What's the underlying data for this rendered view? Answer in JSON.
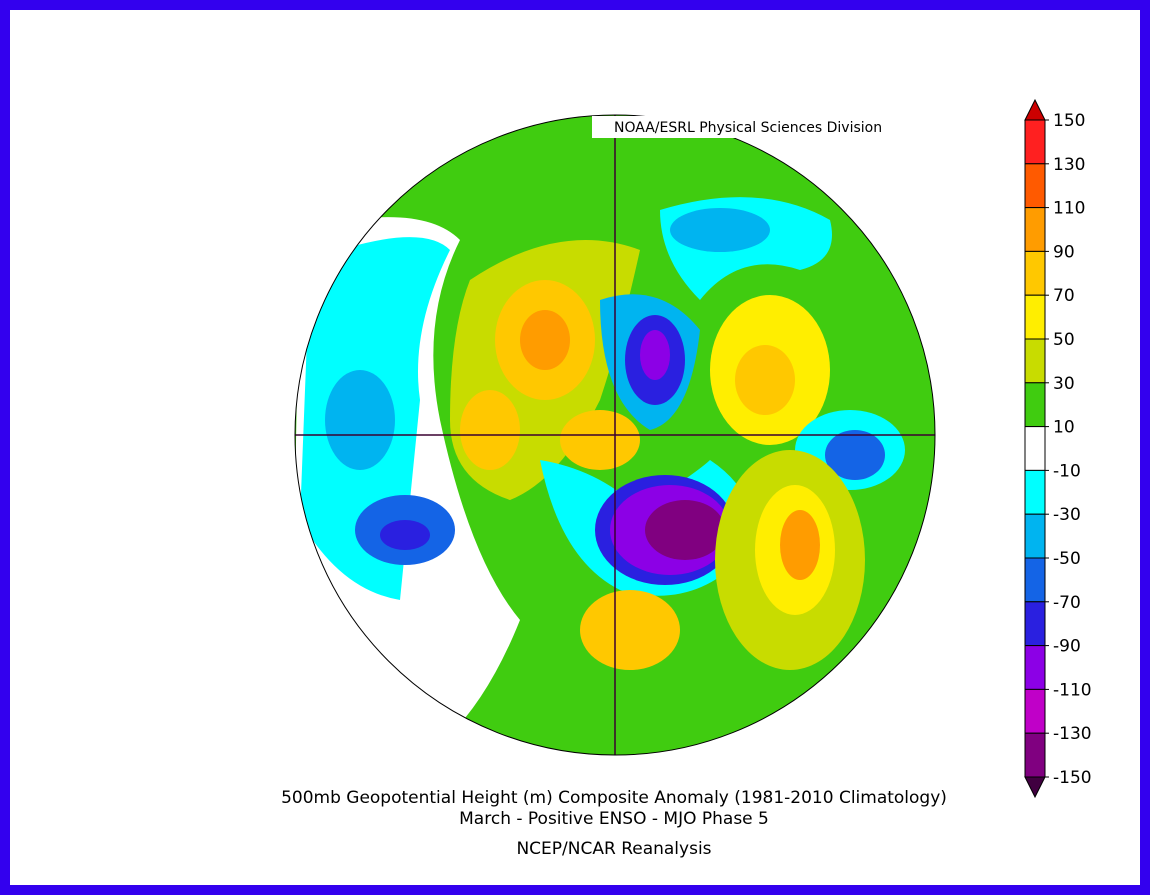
{
  "header": {
    "credit": "NOAA/ESRL Physical Sciences Division"
  },
  "footer": {
    "title": "500mb Geopotential Height (m) Composite Anomaly (1981-2010 Climatology)",
    "subtitle": "March - Positive ENSO - MJO Phase 5",
    "source": "NCEP/NCAR Reanalysis"
  },
  "colorbar": {
    "ticks": [
      150,
      130,
      110,
      90,
      70,
      50,
      30,
      10,
      -10,
      -30,
      -50,
      -70,
      -90,
      -110,
      -130,
      -150
    ],
    "colors": [
      "#ff2020",
      "#ff5a00",
      "#ff9c00",
      "#ffc800",
      "#ffee00",
      "#c8dc00",
      "#40cc10",
      "#ffffff",
      "#00ffff",
      "#00b4f0",
      "#1464e6",
      "#2a20e0",
      "#8c00e6",
      "#c000c8",
      "#800080"
    ],
    "over_color": "#cc0000",
    "under_color": "#400040"
  }
}
